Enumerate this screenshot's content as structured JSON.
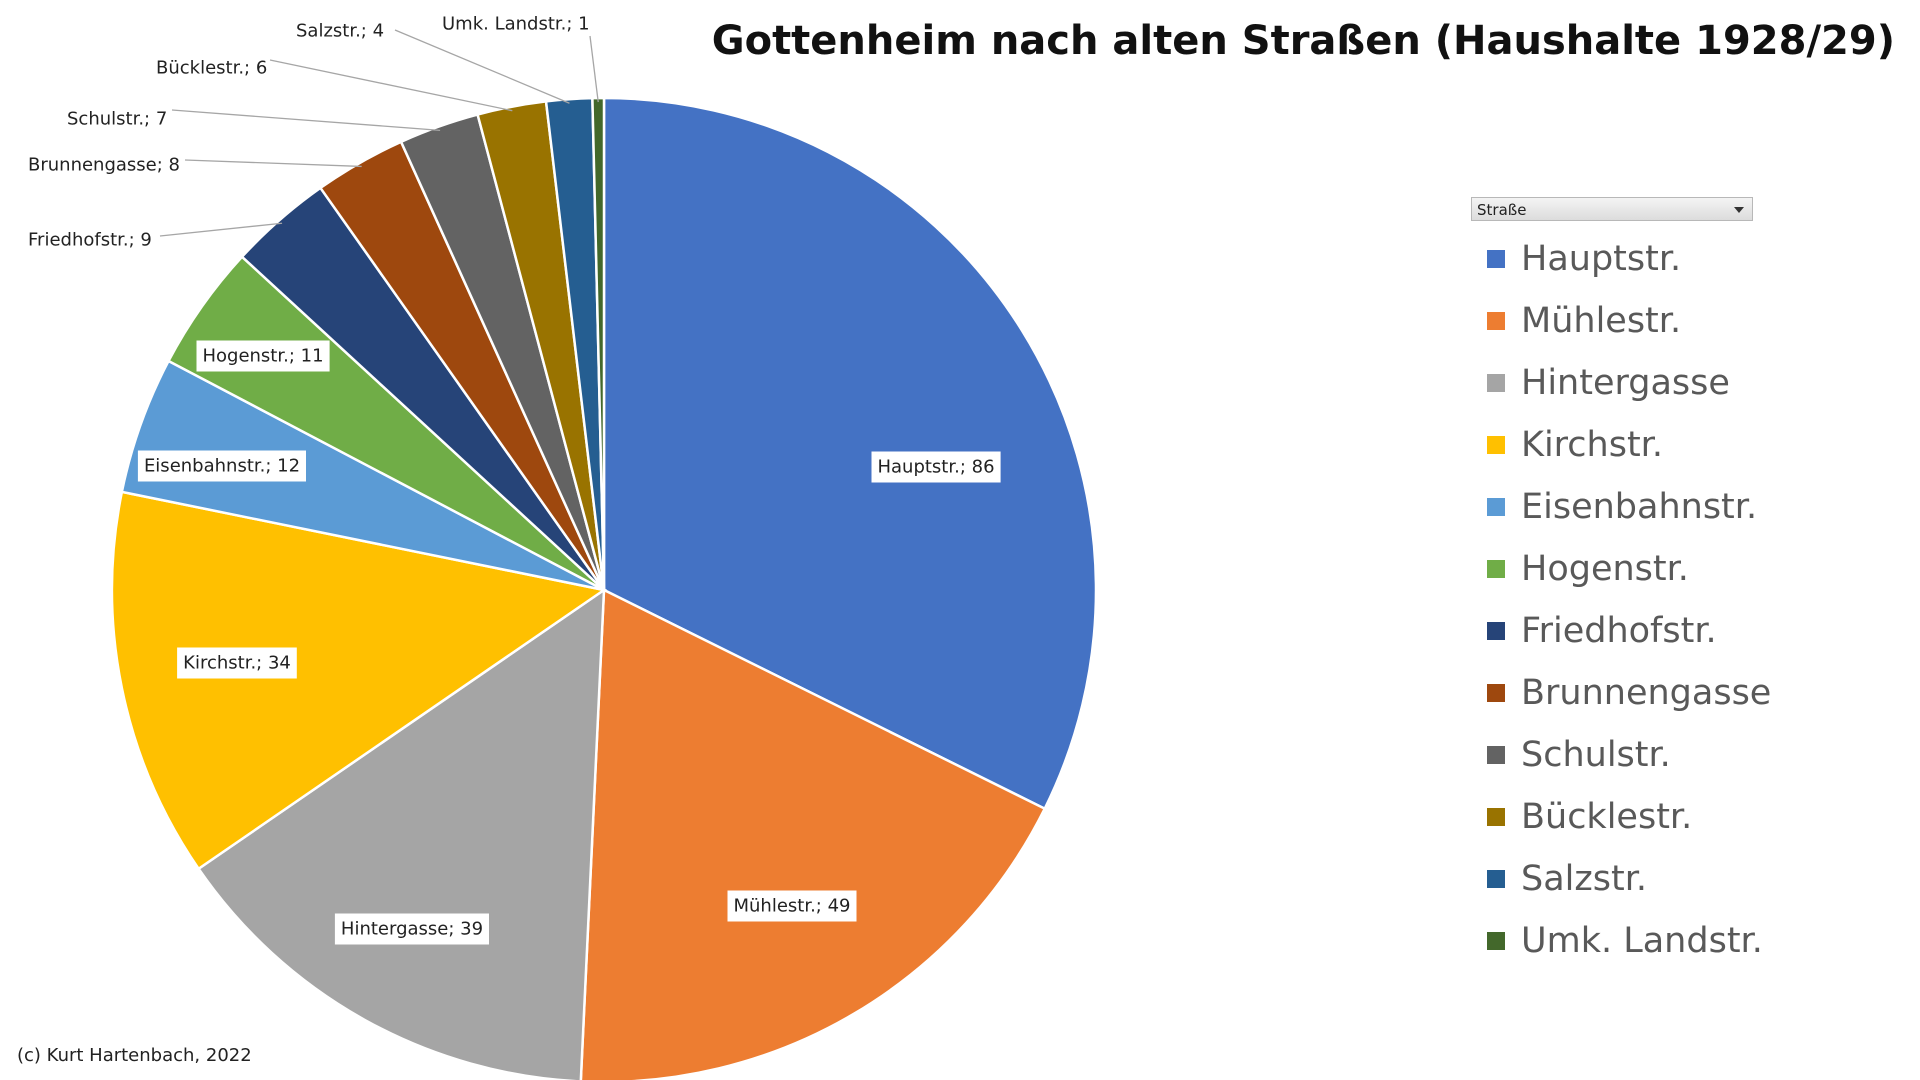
{
  "title": "Gottenheim nach alten Straßen (Haushalte 1928/29)",
  "credit": "(c) Kurt Hartenbach, 2022",
  "legend_filter": {
    "label": "Straße",
    "icon": "dropdown-arrow-icon"
  },
  "chart_data": {
    "type": "pie",
    "title": "Gottenheim nach alten Straßen (Haushalte 1928/29)",
    "legend_position": "right",
    "legend_title": "Straße",
    "slices": [
      {
        "label": "Hauptstr.",
        "value": 86,
        "data_label": "Hauptstr.; 86",
        "color": "#4472C4"
      },
      {
        "label": "Mühlestr.",
        "value": 49,
        "data_label": "Mühlestr.; 49",
        "color": "#ED7D31"
      },
      {
        "label": "Hintergasse",
        "value": 39,
        "data_label": "Hintergasse; 39",
        "color": "#A5A5A5"
      },
      {
        "label": "Kirchstr.",
        "value": 34,
        "data_label": "Kirchstr.; 34",
        "color": "#FFC000"
      },
      {
        "label": "Eisenbahnstr.",
        "value": 12,
        "data_label": "Eisenbahnstr.; 12",
        "color": "#5B9BD5"
      },
      {
        "label": "Hogenstr.",
        "value": 11,
        "data_label": "Hogenstr.; 11",
        "color": "#70AD47"
      },
      {
        "label": "Friedhofstr.",
        "value": 9,
        "data_label": "Friedhofstr.; 9",
        "color": "#264478"
      },
      {
        "label": "Brunnengasse",
        "value": 8,
        "data_label": "Brunnengasse; 8",
        "color": "#9E480E"
      },
      {
        "label": "Schulstr.",
        "value": 7,
        "data_label": "Schulstr.; 7",
        "color": "#636363"
      },
      {
        "label": "Bücklestr.",
        "value": 6,
        "data_label": "Bücklestr.; 6",
        "color": "#997300"
      },
      {
        "label": "Salzstr.",
        "value": 4,
        "data_label": "Salzstr.; 4",
        "color": "#255E91"
      },
      {
        "label": "Umk. Landstr.",
        "value": 1,
        "data_label": "Umk. Landstr.; 1",
        "color": "#43682B"
      }
    ]
  }
}
